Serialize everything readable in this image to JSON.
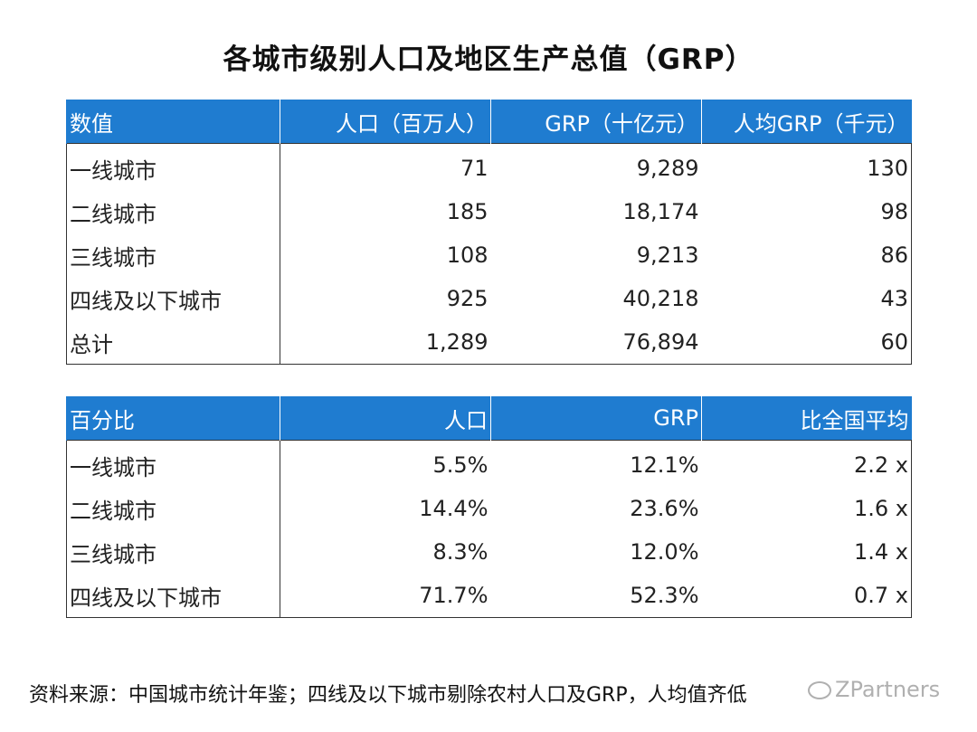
{
  "title": "各城市级别人口及地区生产总值（GRP）",
  "table1": {
    "headers": [
      "数值",
      "人口（百万人）",
      "GRP（十亿元）",
      "人均GRP（千元）"
    ],
    "rows": [
      [
        "一线城市",
        "71",
        "9,289",
        "130"
      ],
      [
        "二线城市",
        "185",
        "18,174",
        "98"
      ],
      [
        "三线城市",
        "108",
        "9,213",
        "86"
      ],
      [
        "四线及以下城市",
        "925",
        "40,218",
        "43"
      ],
      [
        "总计",
        "1,289",
        "76,894",
        "60"
      ]
    ]
  },
  "table2": {
    "headers": [
      "百分比",
      "人口",
      "GRP",
      "比全国平均"
    ],
    "rows": [
      [
        "一线城市",
        "5.5%",
        "12.1%",
        "2.2 x"
      ],
      [
        "二线城市",
        "14.4%",
        "23.6%",
        "1.6 x"
      ],
      [
        "三线城市",
        "8.3%",
        "12.0%",
        "1.4 x"
      ],
      [
        "四线及以下城市",
        "71.7%",
        "52.3%",
        "0.7 x"
      ]
    ]
  },
  "source": "资料来源：中国城市统计年鉴；四线及以下城市剔除农村人口及GRP，人均值齐低",
  "watermark": "ZPartners",
  "colors": {
    "header_bg": "#1f7cd0",
    "header_text": "#ffffff",
    "border": "#333333"
  }
}
